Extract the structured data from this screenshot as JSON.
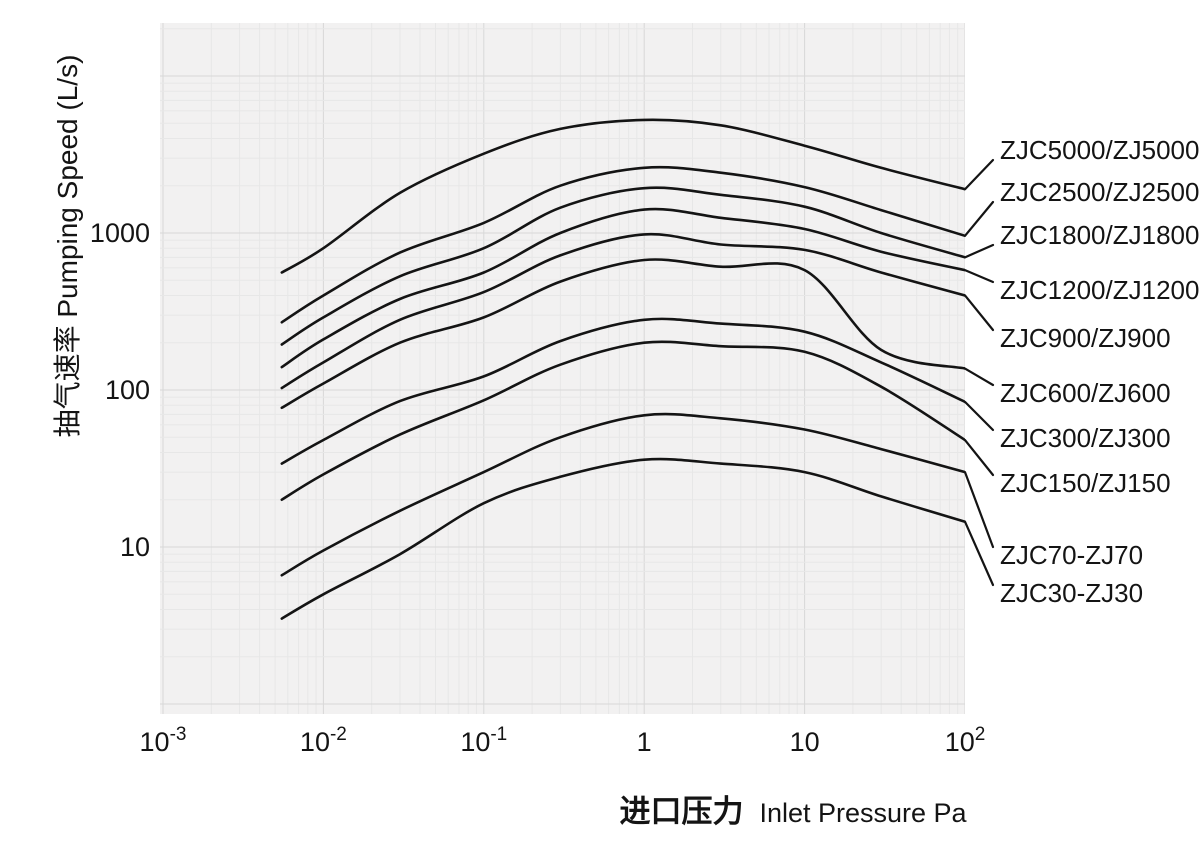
{
  "figure": {
    "background": "#ffffff",
    "panel_color": "#f2f1f1",
    "grid_minor_color": "#e7e7e7",
    "grid_major_color": "#d8d8d8",
    "curve_color": "#141414",
    "text_color": "#141414"
  },
  "chart_data": {
    "type": "line",
    "title": "",
    "xlabel_cn": "进口压力",
    "xlabel_en": "Inlet Pressure Pa",
    "ylabel": "抽气速率 Pumping Speed (L/s)",
    "x_scale": "log",
    "y_scale": "log",
    "xlim": [
      0.001,
      100
    ],
    "ylim": [
      1,
      22000
    ],
    "grid": "both axes, log major and minor gridlines on light gray panel",
    "legend_position": "curve labels right of plot with leader lines",
    "x_ticks": [
      {
        "base": "10",
        "exp": "-3",
        "value": 0.001
      },
      {
        "base": "10",
        "exp": "-2",
        "value": 0.01
      },
      {
        "base": "10",
        "exp": "-1",
        "value": 0.1
      },
      {
        "base": "1",
        "exp": "",
        "value": 1
      },
      {
        "base": "10",
        "exp": "",
        "value": 10
      },
      {
        "base": "10",
        "exp": "2",
        "value": 100
      }
    ],
    "y_ticks": [
      {
        "label": "10",
        "value": 10
      },
      {
        "label": "100",
        "value": 100
      },
      {
        "label": "1000",
        "value": 1000
      }
    ],
    "pressures_pa": [
      0.0055,
      0.01,
      0.03,
      0.1,
      0.3,
      1,
      3,
      10,
      30,
      100
    ],
    "series": [
      {
        "name": "ZJC5000/ZJ5000",
        "speeds_lps": [
          560,
          800,
          1800,
          3200,
          4600,
          5250,
          4850,
          3600,
          2600,
          1900
        ],
        "label_y": 150
      },
      {
        "name": "ZJC2500/ZJ2500",
        "speeds_lps": [
          270,
          400,
          750,
          1160,
          2000,
          2600,
          2420,
          1960,
          1400,
          960
        ],
        "label_y": 192
      },
      {
        "name": "ZJC1800/ZJ1800",
        "speeds_lps": [
          195,
          290,
          530,
          800,
          1450,
          1930,
          1750,
          1470,
          1000,
          700
        ],
        "label_y": 235
      },
      {
        "name": "ZJC1200/ZJ1200",
        "speeds_lps": [
          140,
          210,
          380,
          560,
          1000,
          1410,
          1250,
          1060,
          760,
          580
        ],
        "label_y": 290
      },
      {
        "name": "ZJC900/ZJ900",
        "speeds_lps": [
          103,
          150,
          280,
          420,
          720,
          980,
          845,
          780,
          560,
          400
        ],
        "label_y": 338
      },
      {
        "name": "ZJC600/ZJ600",
        "speeds_lps": [
          77,
          110,
          200,
          290,
          490,
          673,
          610,
          580,
          180,
          137
        ],
        "label_y": 393
      },
      {
        "name": "ZJC300/ZJ300",
        "speeds_lps": [
          34,
          48,
          85,
          122,
          205,
          280,
          265,
          235,
          150,
          84
        ],
        "label_y": 438
      },
      {
        "name": "ZJC150/ZJ150",
        "speeds_lps": [
          20,
          29,
          52,
          86,
          145,
          200,
          190,
          175,
          105,
          48
        ],
        "label_y": 483
      },
      {
        "name": "ZJC70-ZJ70",
        "speeds_lps": [
          6.6,
          9.5,
          17,
          30,
          50,
          69,
          66,
          56,
          42,
          30
        ],
        "label_y": 555
      },
      {
        "name": "ZJC30-ZJ30",
        "speeds_lps": [
          3.5,
          5,
          9,
          19,
          28,
          36,
          34,
          30,
          21,
          14.5
        ],
        "label_y": 593
      }
    ]
  }
}
